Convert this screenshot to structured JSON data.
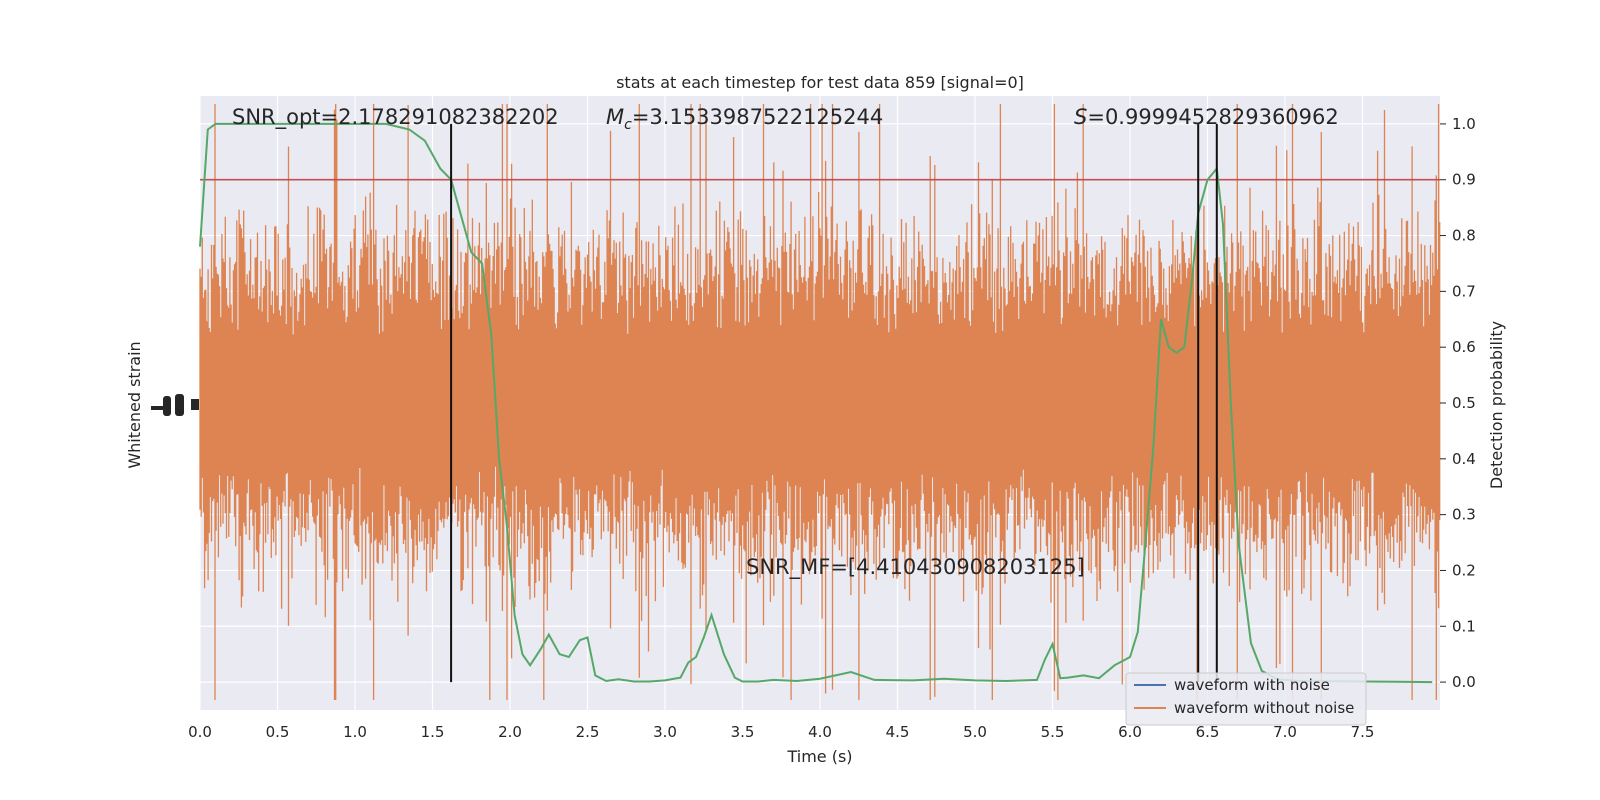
{
  "chart_data": {
    "type": "line",
    "title": "stats at each timestep for test data 859 [signal=0]",
    "xlabel": "Time (s)",
    "ylabel_left": "Whitened strain",
    "ylabel_right": "Detection probability",
    "xlim": [
      0,
      8
    ],
    "ylim_right": [
      -0.05,
      1.05
    ],
    "x_ticks": [
      "0.0",
      "0.5",
      "1.0",
      "1.5",
      "2.0",
      "2.5",
      "3.0",
      "3.5",
      "4.0",
      "4.5",
      "5.0",
      "5.5",
      "6.0",
      "6.5",
      "7.0",
      "7.5"
    ],
    "y_right_ticks": [
      "0.0",
      "0.1",
      "0.2",
      "0.3",
      "0.4",
      "0.5",
      "0.6",
      "0.7",
      "0.8",
      "0.9",
      "1.0"
    ],
    "grid": true,
    "threshold": 0.9,
    "vlines": [
      1.62,
      6.44,
      6.56
    ],
    "annotations": {
      "snr_opt": "SNR_opt=2.178291082382202",
      "mc_symbol": "M",
      "mc_sub": "c",
      "mc_value": "=3.1533987522125244",
      "s_symbol": "S",
      "s_value": "=0.9999452829360962",
      "snr_mf": "SNR_MF=[4.410430908203125]"
    },
    "legend": {
      "placement": "lower-right",
      "entries": [
        {
          "label": "waveform with noise",
          "color": "#4c72b0"
        },
        {
          "label": "waveform without noise",
          "color": "#dd8452"
        }
      ]
    },
    "series": [
      {
        "name": "detection probability",
        "color": "#55a868",
        "x": [
          0.0,
          0.05,
          0.1,
          0.2,
          0.4,
          0.6,
          0.8,
          1.0,
          1.2,
          1.35,
          1.45,
          1.55,
          1.62,
          1.68,
          1.75,
          1.82,
          1.88,
          1.93,
          1.98,
          2.03,
          2.08,
          2.13,
          2.2,
          2.25,
          2.32,
          2.38,
          2.45,
          2.5,
          2.55,
          2.62,
          2.7,
          2.8,
          2.9,
          3.0,
          3.1,
          3.15,
          3.2,
          3.25,
          3.3,
          3.38,
          3.45,
          3.5,
          3.6,
          3.7,
          3.85,
          4.0,
          4.1,
          4.2,
          4.35,
          4.6,
          4.8,
          5.0,
          5.2,
          5.4,
          5.45,
          5.5,
          5.55,
          5.6,
          5.7,
          5.8,
          5.9,
          6.0,
          6.05,
          6.1,
          6.15,
          6.2,
          6.25,
          6.3,
          6.35,
          6.4,
          6.44,
          6.5,
          6.56,
          6.6,
          6.65,
          6.7,
          6.78,
          6.85,
          6.95,
          7.1,
          7.5,
          7.95
        ],
        "y": [
          0.78,
          0.99,
          1.0,
          1.0,
          1.0,
          1.0,
          1.0,
          1.0,
          1.0,
          0.99,
          0.97,
          0.92,
          0.9,
          0.84,
          0.77,
          0.75,
          0.62,
          0.4,
          0.28,
          0.12,
          0.05,
          0.03,
          0.06,
          0.085,
          0.05,
          0.045,
          0.075,
          0.08,
          0.012,
          0.002,
          0.005,
          0.001,
          0.001,
          0.003,
          0.008,
          0.035,
          0.045,
          0.08,
          0.12,
          0.05,
          0.008,
          0.001,
          0.001,
          0.004,
          0.002,
          0.006,
          0.012,
          0.018,
          0.004,
          0.003,
          0.006,
          0.003,
          0.002,
          0.004,
          0.04,
          0.068,
          0.007,
          0.008,
          0.012,
          0.007,
          0.03,
          0.045,
          0.09,
          0.25,
          0.42,
          0.65,
          0.6,
          0.59,
          0.6,
          0.72,
          0.84,
          0.9,
          0.92,
          0.82,
          0.5,
          0.25,
          0.07,
          0.02,
          0.005,
          0.002,
          0.001,
          0.0
        ]
      }
    ]
  }
}
